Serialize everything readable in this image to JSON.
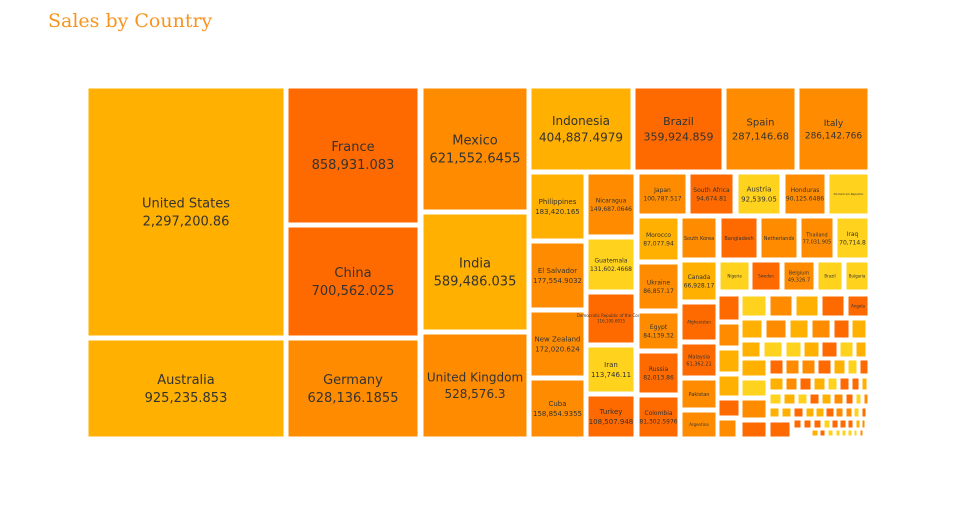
{
  "chart_data": {
    "type": "treemap",
    "title": "Sales by Country",
    "title_color": "#f7941d",
    "palette": [
      "#ffb000",
      "#ff6a00",
      "#ff8c00",
      "#ffd21e"
    ],
    "tiles": [
      {
        "name": "United States",
        "value": "2,297,200.86",
        "color": "#ffb000"
      },
      {
        "name": "Australia",
        "value": "925,235.853",
        "color": "#ffb000"
      },
      {
        "name": "France",
        "value": "858,931.083",
        "color": "#ff6a00"
      },
      {
        "name": "China",
        "value": "700,562.025",
        "color": "#ff6a00"
      },
      {
        "name": "Germany",
        "value": "628,136.1855",
        "color": "#ff8c00"
      },
      {
        "name": "Mexico",
        "value": "621,552.6455",
        "color": "#ff8c00"
      },
      {
        "name": "India",
        "value": "589,486.035",
        "color": "#ffb000"
      },
      {
        "name": "United Kingdom",
        "value": "528,576.3",
        "color": "#ff8c00"
      },
      {
        "name": "Indonesia",
        "value": "404,887.4979",
        "color": "#ffb000"
      },
      {
        "name": "Brazil",
        "value": "359,924.859",
        "color": "#ff6a00"
      },
      {
        "name": "Spain",
        "value": "287,146.68",
        "color": "#ff8c00"
      },
      {
        "name": "Italy",
        "value": "286,142.766",
        "color": "#ff8c00"
      },
      {
        "name": "Philippines",
        "value": "183,420.165",
        "color": "#ffb000"
      },
      {
        "name": "El Salvador",
        "value": "177,554.9032",
        "color": "#ff8c00"
      },
      {
        "name": "New Zealand",
        "value": "172,020.624",
        "color": "#ff8c00"
      },
      {
        "name": "Cuba",
        "value": "158,854.9355",
        "color": "#ff8c00"
      },
      {
        "name": "Nicaragua",
        "value": "149,687.0646",
        "color": "#ff8c00"
      },
      {
        "name": "Guatemala",
        "value": "131,602.4668",
        "color": "#ffd21e"
      },
      {
        "name": "Democratic Republic of the Congo",
        "value": "116,100.6915",
        "color": "#ff6a00"
      },
      {
        "name": "Iran",
        "value": "113,746.11",
        "color": "#ffd21e"
      },
      {
        "name": "Turkey",
        "value": "108,507.948",
        "color": "#ff6a00"
      },
      {
        "name": "Japan",
        "value": "100,787.517",
        "color": "#ff8c00"
      },
      {
        "name": "Morocco",
        "value": "87,077.94",
        "color": "#ffb000"
      },
      {
        "name": "Ukraine",
        "value": "86,857.17",
        "color": "#ff8c00"
      },
      {
        "name": "Egypt",
        "value": "84,139.32",
        "color": "#ff8c00"
      },
      {
        "name": "Russia",
        "value": "82,013.86",
        "color": "#ff6a00"
      },
      {
        "name": "Colombia",
        "value": "81,302.5976",
        "color": "#ff6a00"
      },
      {
        "name": "South Africa",
        "value": "94,674.81",
        "color": "#ff6a00"
      },
      {
        "name": "South Korea",
        "value": "",
        "color": "#ff8c00"
      },
      {
        "name": "Canada",
        "value": "66,928.17",
        "color": "#ffb000"
      },
      {
        "name": "Afghanistan",
        "value": "",
        "color": "#ff6a00"
      },
      {
        "name": "Malaysia",
        "value": "61,362.21",
        "color": "#ff6a00"
      },
      {
        "name": "Pakistan",
        "value": "",
        "color": "#ff8c00"
      },
      {
        "name": "Argentina",
        "value": "",
        "color": "#ff8c00"
      },
      {
        "name": "Austria",
        "value": "92,539.05",
        "color": "#ffd21e"
      },
      {
        "name": "Honduras",
        "value": "90,125.6486",
        "color": "#ff8c00"
      },
      {
        "name": "Dominican Republic",
        "value": "",
        "color": "#ffd21e"
      },
      {
        "name": "Bangladesh",
        "value": "",
        "color": "#ff6a00"
      },
      {
        "name": "Netherlands",
        "value": "",
        "color": "#ff8c00"
      },
      {
        "name": "Thailand",
        "value": "77,031.905",
        "color": "#ff8c00"
      },
      {
        "name": "Iraq",
        "value": "70,714.8",
        "color": "#ffd21e"
      },
      {
        "name": "Nigeria",
        "value": "",
        "color": "#ffd21e"
      },
      {
        "name": "Sweden",
        "value": "",
        "color": "#ff6a00"
      },
      {
        "name": "Belgium",
        "value": "49,326.7",
        "color": "#ff8c00"
      },
      {
        "name": "Brazil",
        "value": "",
        "color": "#ffd21e"
      },
      {
        "name": "Bulgaria",
        "value": "",
        "color": "#ffd21e"
      },
      {
        "name": "Angola",
        "value": "",
        "color": "#ff6a00"
      }
    ]
  }
}
